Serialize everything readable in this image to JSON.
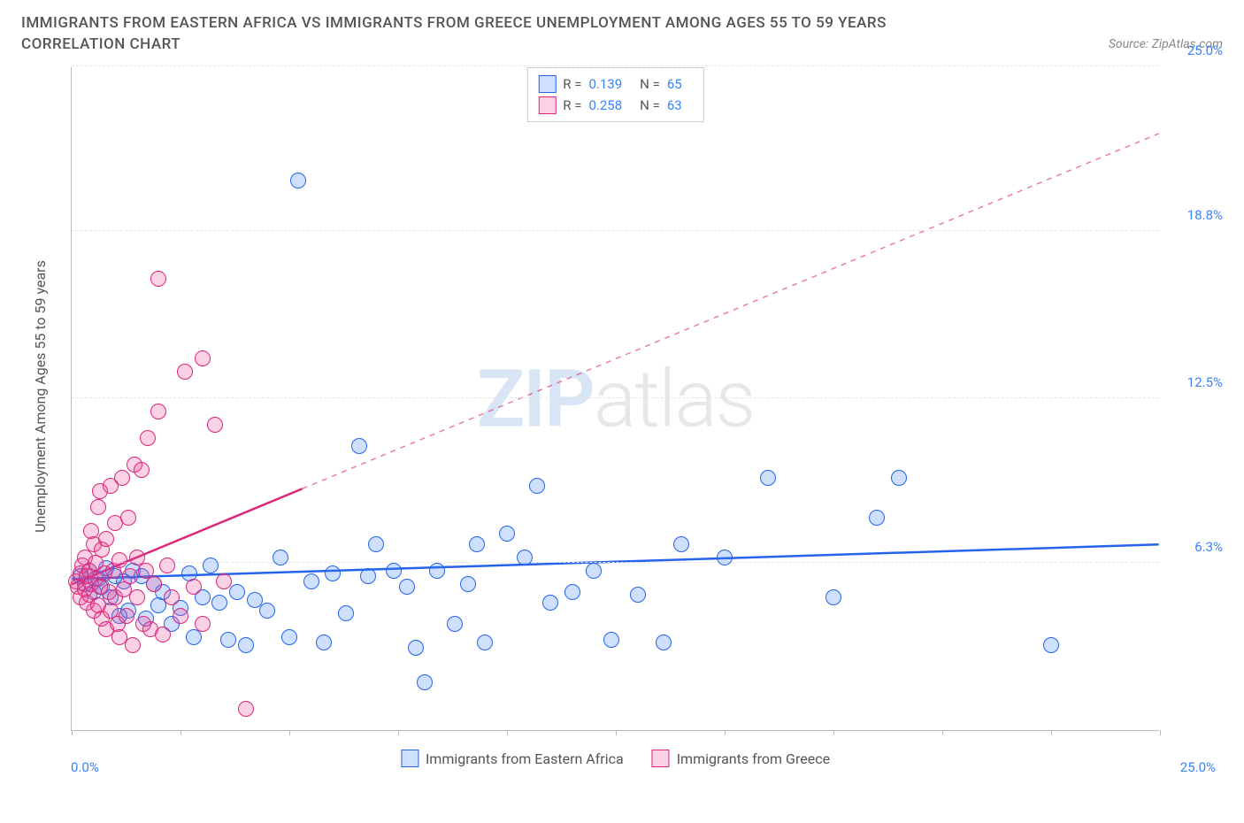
{
  "title": "IMMIGRANTS FROM EASTERN AFRICA VS IMMIGRANTS FROM GREECE UNEMPLOYMENT AMONG AGES 55 TO 59 YEARS",
  "subtitle": "CORRELATION CHART",
  "source_label": "Source: ZipAtlas.com",
  "y_axis_title": "Unemployment Among Ages 55 to 59 years",
  "watermark": {
    "zip": "ZIP",
    "atlas": "atlas"
  },
  "chart": {
    "type": "scatter",
    "xlim": [
      0,
      25
    ],
    "ylim": [
      0,
      25
    ],
    "xtick_positions": [
      0,
      2.5,
      5,
      7.5,
      10,
      12.5,
      15,
      17.5,
      20,
      22.5,
      25
    ],
    "ytick_positions": [
      6.3,
      12.5,
      18.8,
      25.0
    ],
    "ytick_labels": [
      "6.3%",
      "12.5%",
      "18.8%",
      "25.0%"
    ],
    "x_min_label": "0.0%",
    "x_max_label": "25.0%",
    "background_color": "#ffffff",
    "grid_color": "#e5e5e5",
    "point_radius": 9,
    "point_stroke_width": 1.5,
    "point_fill_opacity": 0.25
  },
  "series": [
    {
      "name": "Immigrants from Eastern Africa",
      "color": "#3b82f6",
      "stroke": "#2563eb",
      "R": "0.139",
      "N": "65",
      "trend": {
        "x1": 0,
        "y1": 5.7,
        "x2": 25,
        "y2": 7.0,
        "dash_from_x": null
      },
      "points": [
        [
          0.2,
          5.8
        ],
        [
          0.3,
          5.5
        ],
        [
          0.4,
          6.0
        ],
        [
          0.5,
          5.2
        ],
        [
          0.6,
          5.7
        ],
        [
          0.7,
          5.4
        ],
        [
          0.8,
          6.1
        ],
        [
          0.9,
          5.0
        ],
        [
          1.0,
          5.8
        ],
        [
          1.1,
          4.3
        ],
        [
          1.2,
          5.6
        ],
        [
          1.3,
          4.5
        ],
        [
          1.4,
          6.0
        ],
        [
          1.6,
          5.8
        ],
        [
          1.7,
          4.2
        ],
        [
          1.9,
          5.5
        ],
        [
          2.0,
          4.7
        ],
        [
          2.1,
          5.2
        ],
        [
          2.3,
          4.0
        ],
        [
          2.5,
          4.6
        ],
        [
          2.7,
          5.9
        ],
        [
          2.8,
          3.5
        ],
        [
          3.0,
          5.0
        ],
        [
          3.2,
          6.2
        ],
        [
          3.4,
          4.8
        ],
        [
          3.6,
          3.4
        ],
        [
          3.8,
          5.2
        ],
        [
          4.0,
          3.2
        ],
        [
          4.2,
          4.9
        ],
        [
          4.5,
          4.5
        ],
        [
          4.8,
          6.5
        ],
        [
          5.0,
          3.5
        ],
        [
          5.2,
          20.7
        ],
        [
          5.5,
          5.6
        ],
        [
          5.8,
          3.3
        ],
        [
          6.0,
          5.9
        ],
        [
          6.3,
          4.4
        ],
        [
          6.6,
          10.7
        ],
        [
          6.8,
          5.8
        ],
        [
          7.0,
          7.0
        ],
        [
          7.4,
          6.0
        ],
        [
          7.7,
          5.4
        ],
        [
          7.9,
          3.1
        ],
        [
          8.1,
          1.8
        ],
        [
          8.4,
          6.0
        ],
        [
          8.8,
          4.0
        ],
        [
          9.1,
          5.5
        ],
        [
          9.3,
          7.0
        ],
        [
          9.5,
          3.3
        ],
        [
          10.0,
          7.4
        ],
        [
          10.4,
          6.5
        ],
        [
          10.7,
          9.2
        ],
        [
          11.0,
          4.8
        ],
        [
          11.5,
          5.2
        ],
        [
          12.0,
          6.0
        ],
        [
          12.4,
          3.4
        ],
        [
          13.0,
          5.1
        ],
        [
          13.6,
          3.3
        ],
        [
          14.0,
          7.0
        ],
        [
          15.0,
          6.5
        ],
        [
          16.0,
          9.5
        ],
        [
          17.5,
          5.0
        ],
        [
          18.5,
          8.0
        ],
        [
          19.0,
          9.5
        ],
        [
          22.5,
          3.2
        ]
      ]
    },
    {
      "name": "Immigrants from Greece",
      "color": "#ec4899",
      "stroke": "#db2777",
      "R": "0.258",
      "N": "63",
      "trend": {
        "x1": 0,
        "y1": 5.5,
        "x2": 25,
        "y2": 22.5,
        "dash_from_x": 5.3
      },
      "points": [
        [
          0.1,
          5.6
        ],
        [
          0.15,
          5.4
        ],
        [
          0.2,
          5.9
        ],
        [
          0.2,
          5.0
        ],
        [
          0.25,
          6.2
        ],
        [
          0.3,
          5.3
        ],
        [
          0.3,
          6.5
        ],
        [
          0.35,
          4.8
        ],
        [
          0.35,
          5.8
        ],
        [
          0.4,
          6.0
        ],
        [
          0.4,
          5.1
        ],
        [
          0.45,
          7.5
        ],
        [
          0.45,
          5.5
        ],
        [
          0.5,
          4.5
        ],
        [
          0.5,
          7.0
        ],
        [
          0.55,
          5.7
        ],
        [
          0.55,
          6.3
        ],
        [
          0.6,
          8.4
        ],
        [
          0.6,
          4.7
        ],
        [
          0.65,
          5.4
        ],
        [
          0.65,
          9.0
        ],
        [
          0.7,
          6.8
        ],
        [
          0.7,
          4.2
        ],
        [
          0.75,
          5.9
        ],
        [
          0.8,
          3.8
        ],
        [
          0.8,
          7.2
        ],
        [
          0.85,
          5.2
        ],
        [
          0.9,
          9.2
        ],
        [
          0.9,
          4.5
        ],
        [
          0.95,
          6.0
        ],
        [
          1.0,
          7.8
        ],
        [
          1.0,
          5.0
        ],
        [
          1.05,
          4.0
        ],
        [
          1.1,
          6.4
        ],
        [
          1.1,
          3.5
        ],
        [
          1.15,
          9.5
        ],
        [
          1.2,
          5.3
        ],
        [
          1.25,
          4.3
        ],
        [
          1.3,
          8.0
        ],
        [
          1.35,
          5.8
        ],
        [
          1.4,
          3.2
        ],
        [
          1.45,
          10.0
        ],
        [
          1.5,
          5.0
        ],
        [
          1.5,
          6.5
        ],
        [
          1.6,
          9.8
        ],
        [
          1.65,
          4.0
        ],
        [
          1.7,
          6.0
        ],
        [
          1.75,
          11.0
        ],
        [
          1.8,
          3.8
        ],
        [
          1.9,
          5.5
        ],
        [
          2.0,
          12.0
        ],
        [
          2.0,
          17.0
        ],
        [
          2.1,
          3.6
        ],
        [
          2.2,
          6.2
        ],
        [
          2.3,
          5.0
        ],
        [
          2.5,
          4.3
        ],
        [
          2.6,
          13.5
        ],
        [
          2.8,
          5.4
        ],
        [
          3.0,
          14.0
        ],
        [
          3.0,
          4.0
        ],
        [
          3.3,
          11.5
        ],
        [
          3.5,
          5.6
        ],
        [
          4.0,
          0.8
        ]
      ]
    }
  ]
}
